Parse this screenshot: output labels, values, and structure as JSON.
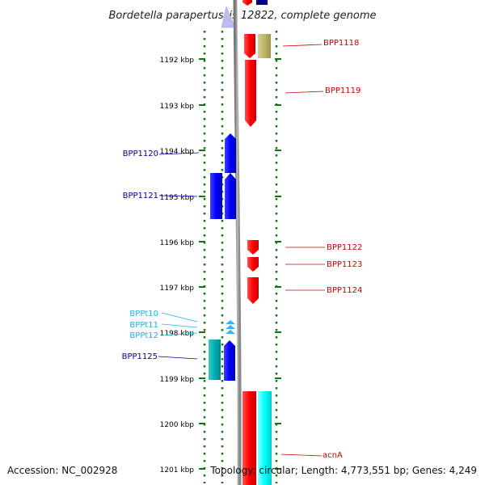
{
  "title": "Bordetella parapertussis 12822, complete genome",
  "footer": {
    "accession": "Accession: NC_002928",
    "summary": "Topology: circular; Length: 4,773,551 bp; Genes: 4,249"
  },
  "scale": {
    "ticks": [
      "1192 kbp",
      "1193 kbp",
      "1194 kbp",
      "1195 kbp",
      "1196 kbp",
      "1197 kbp",
      "1198 kbp",
      "1199 kbp",
      "1200 kbp",
      "1201 kbp"
    ]
  },
  "gene_labels": {
    "bpp1118": "BPP1118",
    "bpp1119": "BPP1119",
    "bpp1120": "BPP1120",
    "bpp1121": "BPP1121",
    "bpp1122": "BPP1122",
    "bpp1123": "BPP1123",
    "bpp1124": "BPP1124",
    "bppt10": "BPPt10",
    "bppt11": "BPPt11",
    "bppt12": "BPPt12",
    "bpp1125": "BPP1125",
    "acna": "acnA"
  },
  "colors": {
    "forward_cds": "#ff0000",
    "reverse_cds": "#0000ff",
    "trna": "#33b4ff",
    "forward_other": "#00ffff",
    "reverse_other": "#00b3b3",
    "khaki_feature": "#bdb76b",
    "backbone": "#999999",
    "tick_green": "#117711",
    "forward_label": "#cc0000",
    "reverse_label": "#000099",
    "trna_label": "#1fb0e0"
  }
}
